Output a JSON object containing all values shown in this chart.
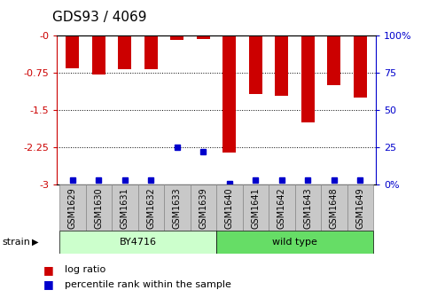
{
  "title": "GDS93 / 4069",
  "samples": [
    "GSM1629",
    "GSM1630",
    "GSM1631",
    "GSM1632",
    "GSM1633",
    "GSM1639",
    "GSM1640",
    "GSM1641",
    "GSM1642",
    "GSM1643",
    "GSM1648",
    "GSM1649"
  ],
  "log_ratios": [
    -0.65,
    -0.78,
    -0.67,
    -0.67,
    -0.08,
    -0.07,
    -2.35,
    -1.18,
    -1.2,
    -1.75,
    -1.0,
    -1.25
  ],
  "percentile_ranks": [
    3.0,
    3.0,
    3.0,
    3.0,
    25.0,
    22.0,
    0.5,
    3.0,
    3.0,
    3.0,
    3.0,
    3.0
  ],
  "bar_color": "#cc0000",
  "dot_color": "#0000cc",
  "ylim": [
    -3.0,
    0.0
  ],
  "y2lim": [
    0,
    100
  ],
  "yticks": [
    0,
    -0.75,
    -1.5,
    -2.25,
    -3.0
  ],
  "y2ticks": [
    0,
    25,
    50,
    75,
    100
  ],
  "ytick_labels": [
    "-0",
    "-0.75",
    "-1.5",
    "-2.25",
    "-3"
  ],
  "y2tick_labels": [
    "0%",
    "25",
    "50",
    "75",
    "100%"
  ],
  "strain_groups": [
    {
      "label": "BY4716",
      "start": 0,
      "end": 6,
      "color": "#ccffcc"
    },
    {
      "label": "wild type",
      "start": 6,
      "end": 12,
      "color": "#66dd66"
    }
  ],
  "strain_label": "strain",
  "legend_log_ratio": "log ratio",
  "legend_percentile": "percentile rank within the sample",
  "bar_width": 0.5,
  "axis_color_left": "#cc0000",
  "axis_color_right": "#0000cc",
  "tick_fontsize": 8,
  "sample_fontsize": 7,
  "legend_fontsize": 8,
  "title_fontsize": 11
}
